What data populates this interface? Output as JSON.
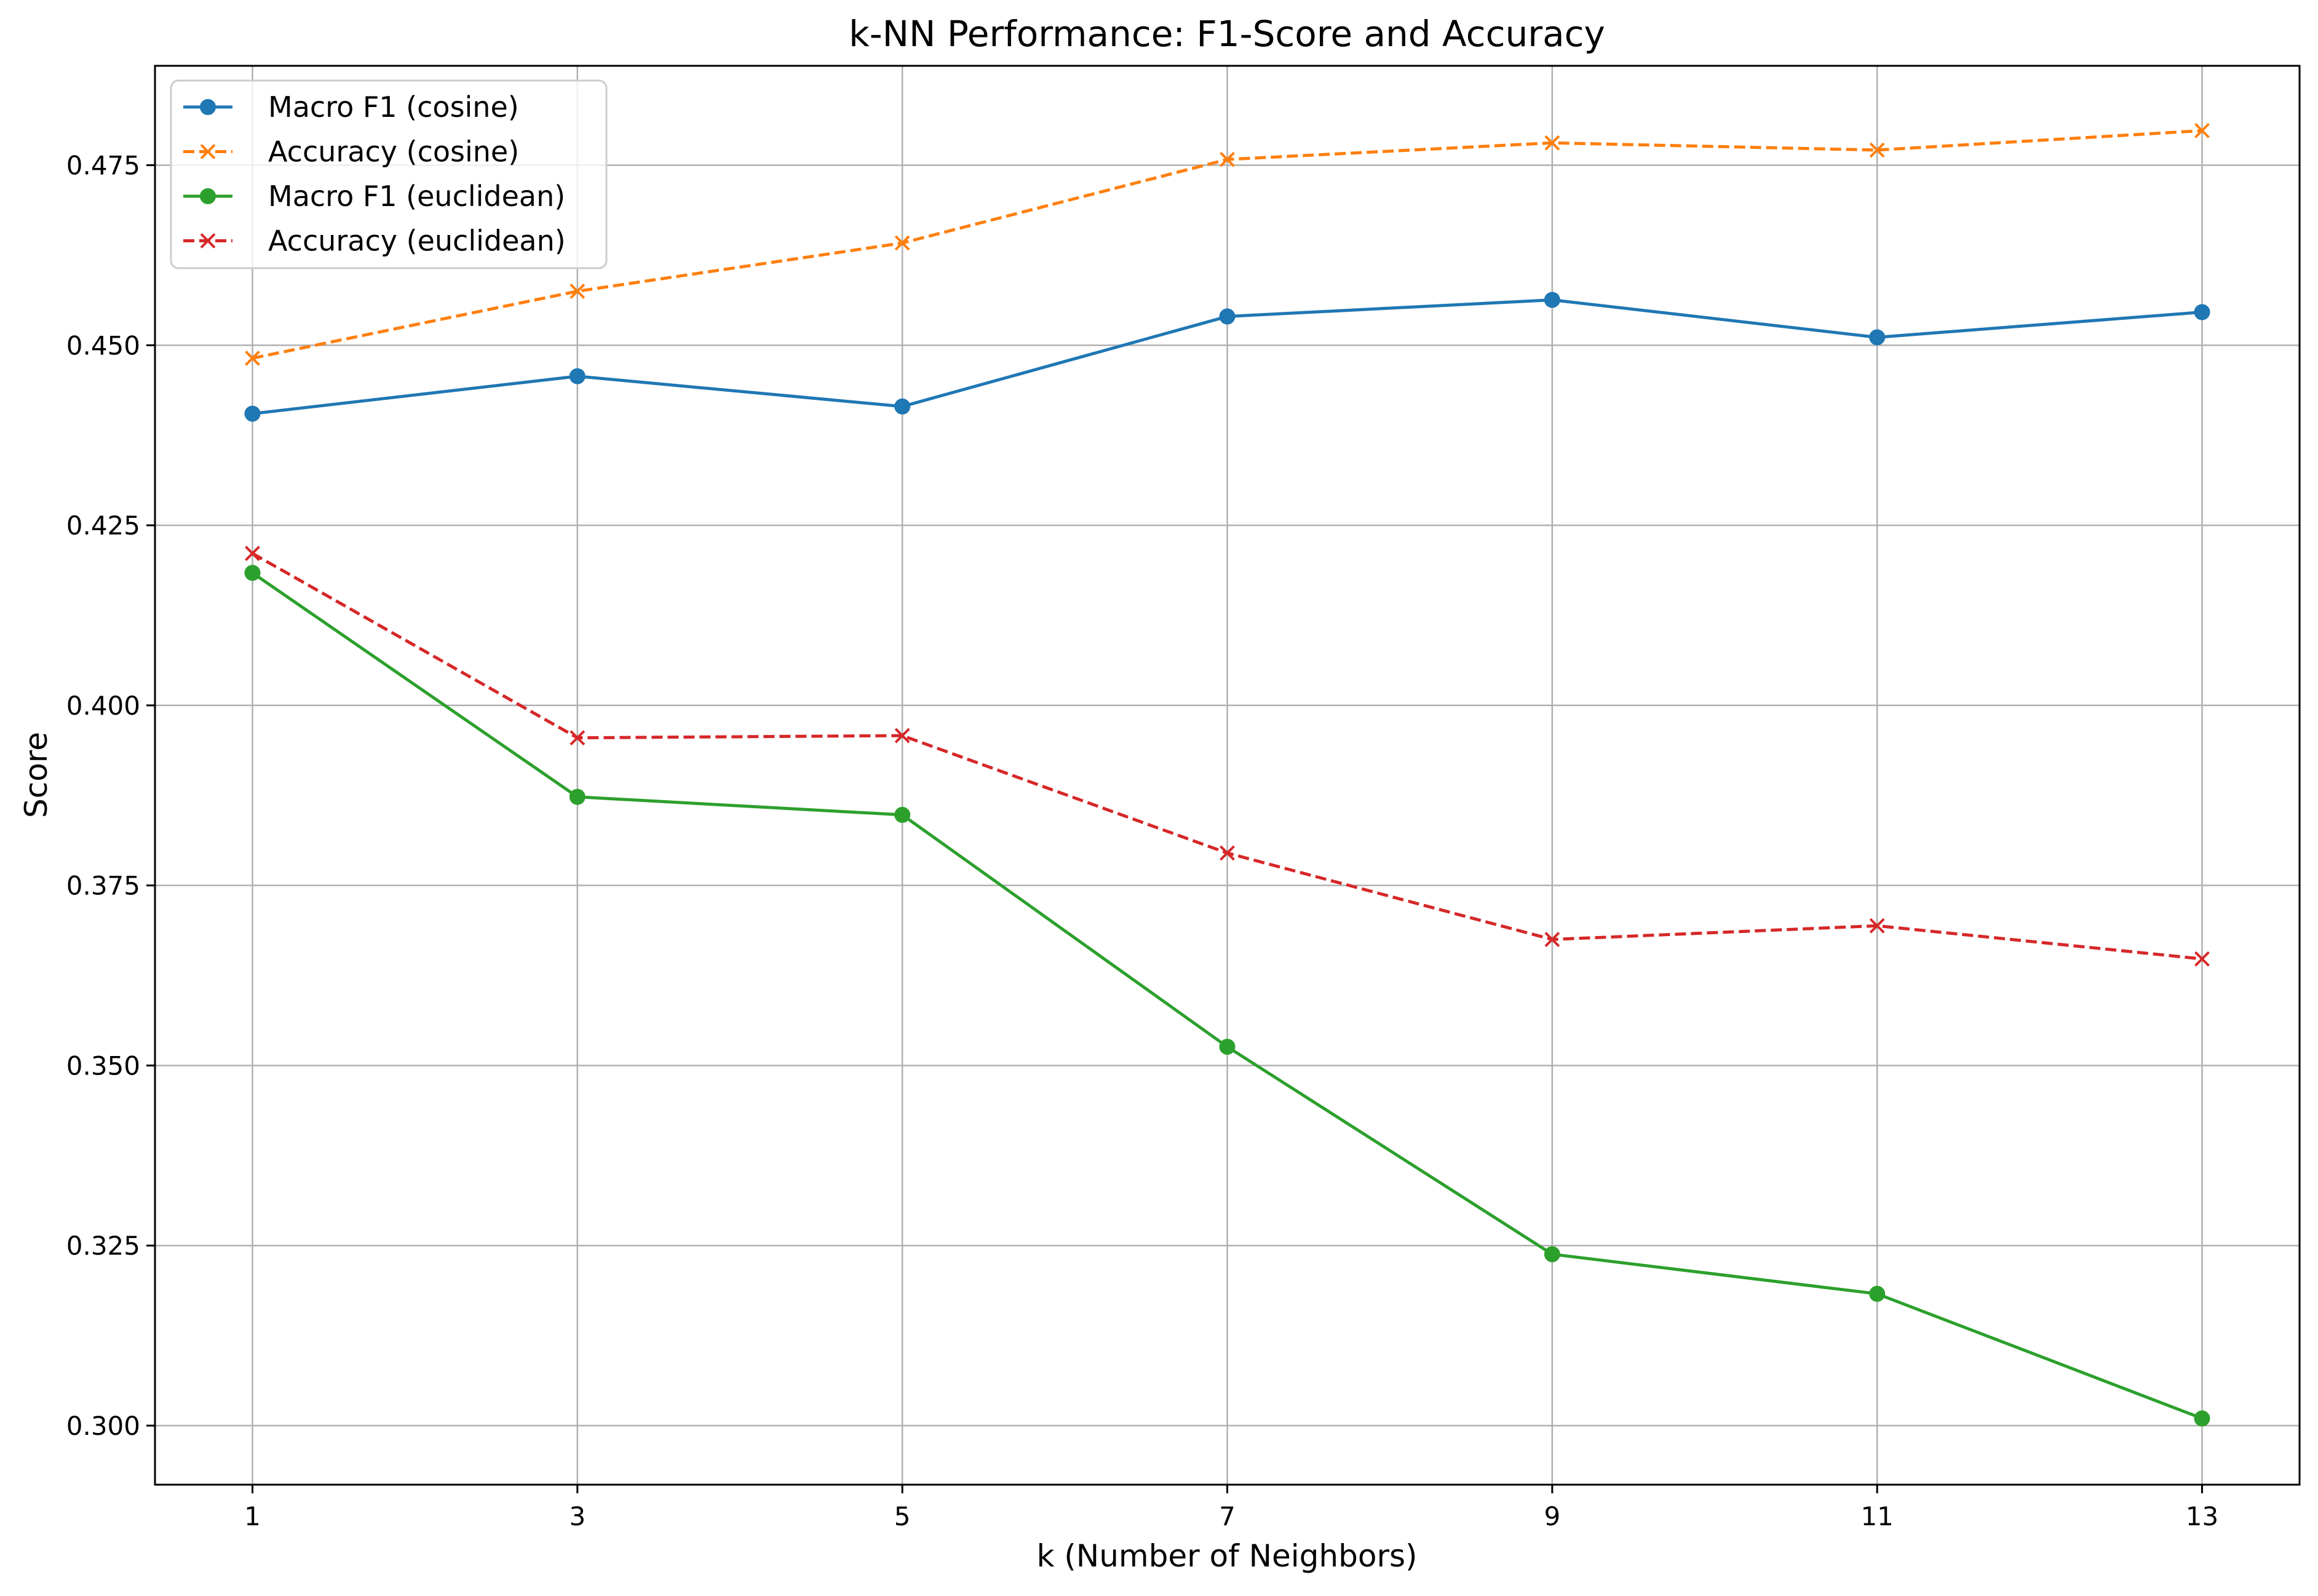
{
  "chart_data": {
    "type": "line",
    "title": "k-NN Performance: F1-Score and Accuracy",
    "xlabel": "k (Number of Neighbors)",
    "ylabel": "Score",
    "x": [
      1,
      3,
      5,
      7,
      9,
      11,
      13
    ],
    "x_ticks": [
      "1",
      "3",
      "5",
      "7",
      "9",
      "11",
      "13"
    ],
    "xlim": [
      0.4,
      13.6
    ],
    "ylim": [
      0.2918,
      0.4888
    ],
    "y_ticks": [
      0.3,
      0.325,
      0.35,
      0.375,
      0.4,
      0.425,
      0.45,
      0.475
    ],
    "y_tick_labels": [
      "0.300",
      "0.325",
      "0.350",
      "0.375",
      "0.400",
      "0.425",
      "0.450",
      "0.475"
    ],
    "grid": true,
    "legend_position": "top-left",
    "series": [
      {
        "name": "Macro F1 (cosine)",
        "color": "#1f77b4",
        "line_style": "solid",
        "marker": "circle",
        "values": [
          0.4405,
          0.4457,
          0.4415,
          0.454,
          0.4563,
          0.4511,
          0.4546
        ]
      },
      {
        "name": "Accuracy (cosine)",
        "color": "#ff7f0e",
        "line_style": "dashed",
        "marker": "x",
        "values": [
          0.4482,
          0.4575,
          0.4642,
          0.4758,
          0.4781,
          0.4771,
          0.4798
        ]
      },
      {
        "name": "Macro F1 (euclidean)",
        "color": "#2ca02c",
        "line_style": "solid",
        "marker": "circle",
        "values": [
          0.4184,
          0.3873,
          0.3848,
          0.3526,
          0.3238,
          0.3183,
          0.301
        ]
      },
      {
        "name": "Accuracy (euclidean)",
        "color": "#d62728",
        "line_style": "dashed",
        "marker": "x",
        "values": [
          0.4211,
          0.3955,
          0.3958,
          0.3795,
          0.3675,
          0.3694,
          0.3648
        ]
      }
    ]
  }
}
